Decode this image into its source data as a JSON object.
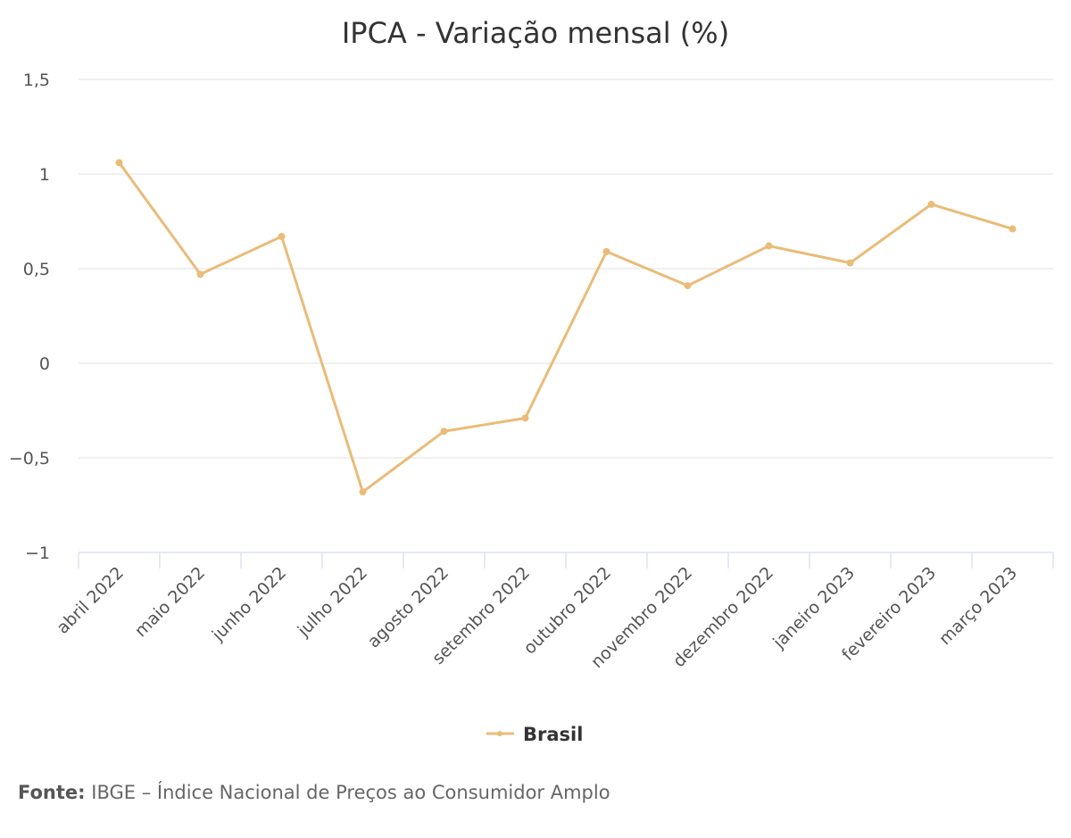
{
  "chart_data": {
    "type": "line",
    "title": "IPCA - Variação mensal (%)",
    "categories": [
      "abril 2022",
      "maio 2022",
      "junho 2022",
      "julho 2022",
      "agosto 2022",
      "setembro 2022",
      "outubro 2022",
      "novembro 2022",
      "dezembro 2022",
      "janeiro 2023",
      "fevereiro 2023",
      "março 2023"
    ],
    "series": [
      {
        "name": "Brasil",
        "color": "#E9BC78",
        "values": [
          1.06,
          0.47,
          0.67,
          -0.68,
          -0.36,
          -0.29,
          0.59,
          0.41,
          0.62,
          0.53,
          0.84,
          0.71
        ]
      }
    ],
    "yticks": [
      1.5,
      1,
      0.5,
      0,
      -0.5,
      -1
    ],
    "ytick_labels": [
      "1,5",
      "1",
      "0,5",
      "0",
      "−0,5",
      "−1"
    ],
    "ylim": [
      -1,
      1.5
    ],
    "grid": true,
    "legend": "bottom-center"
  },
  "source": {
    "label": "Fonte:",
    "text": "IBGE – Índice Nacional de Preços ao Consumidor Amplo"
  }
}
